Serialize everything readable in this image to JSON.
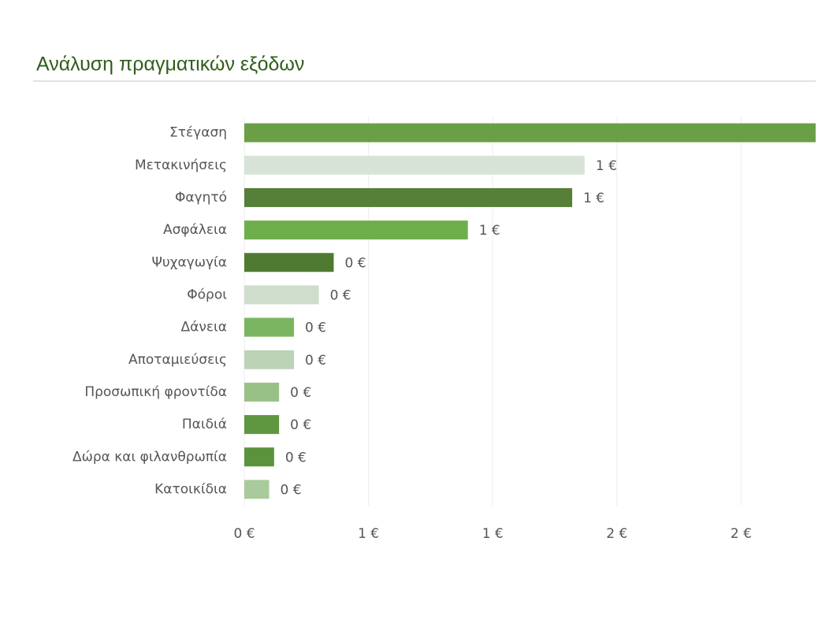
{
  "chart_data": {
    "type": "bar",
    "orientation": "horizontal",
    "title": "Ανάλυση πραγματικών εξόδων",
    "categories": [
      "Στέγαση",
      "Μετακινήσεις",
      "Φαγητό",
      "Ασφάλεια",
      "Ψυχαγωγία",
      "Φόροι",
      "Δάνεια",
      "Αποταμιεύσεις",
      "Προσωπική φροντίδα",
      "Παιδιά",
      "Δώρα και φιλανθρωπία",
      "Κατοικίδια"
    ],
    "values": [
      2.3,
      1.37,
      1.32,
      0.9,
      0.36,
      0.3,
      0.2,
      0.2,
      0.14,
      0.14,
      0.12,
      0.1
    ],
    "value_labels": [
      null,
      "1 €",
      "1 €",
      "1 €",
      "0 €",
      "0 €",
      "0 €",
      "0 €",
      "0 €",
      "0 €",
      "0 €",
      "0 €"
    ],
    "colors": [
      "#6a9f46",
      "#d7e3d6",
      "#567f38",
      "#6fae4c",
      "#4f7a31",
      "#cfddcd",
      "#7cb562",
      "#bcd3b5",
      "#98c188",
      "#5e9740",
      "#5a933c",
      "#a9cb9b"
    ],
    "xlim": [
      0,
      2.3
    ],
    "xticks": [
      {
        "value": 0,
        "label": "0 €"
      },
      {
        "value": 0.5,
        "label": "1 €"
      },
      {
        "value": 1,
        "label": "1 €"
      },
      {
        "value": 1.5,
        "label": "2 €"
      },
      {
        "value": 2,
        "label": "2 €"
      }
    ],
    "grid": true
  }
}
